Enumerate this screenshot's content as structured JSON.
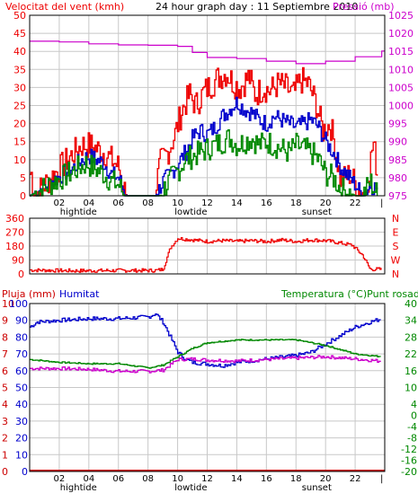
{
  "header": {
    "title": "24 hour graph day : 11 Septiembre 2010",
    "left_label": "Velocitat del vent (kmh)",
    "right_label": "Pressió (mb)"
  },
  "colors": {
    "wind_max": "#ee0000",
    "wind_avg": "#0000cc",
    "wind_min": "#008800",
    "pressure": "#cc00cc",
    "direction": "#ee0000",
    "humidity": "#0000cc",
    "temperature": "#008800",
    "dewpoint": "#cc00cc",
    "rain": "#cc0000",
    "grid": "#c8c8c8",
    "frame": "#000000"
  },
  "x_axis": {
    "ticks": [
      "02",
      "04",
      "06",
      "08",
      "10",
      "12",
      "14",
      "16",
      "18",
      "20",
      "22",
      "|"
    ],
    "markers": [
      {
        "label": "hightide",
        "hour": 3.3
      },
      {
        "label": "lowtide",
        "hour": 10.9
      },
      {
        "label": "sunset",
        "hour": 19.4
      }
    ]
  },
  "chart_data": [
    {
      "type": "line",
      "title": "24 hour graph day : 11 Septiembre 2010",
      "ylabel": "Velocitat del vent (kmh)",
      "ylabel_right": "Pressió (mb)",
      "ylim": [
        0,
        50
      ],
      "ylim_right": [
        975,
        1025
      ],
      "yticks": [
        "0",
        "5",
        "10",
        "15",
        "20",
        "25",
        "30",
        "35",
        "40",
        "45",
        "50"
      ],
      "yticks_right": [
        "975",
        "980",
        "985",
        "990",
        "995",
        "1000",
        "1005",
        "1010",
        "1015",
        "1020",
        "1025"
      ],
      "x_unit": "hour",
      "series": [
        {
          "key": "wind_max",
          "x": [
            0,
            0.1,
            0.3,
            3.0,
            3.5,
            4.0,
            4.5,
            5.0,
            6.0,
            6.5,
            8.4,
            8.8,
            9.3,
            9.8,
            10.3,
            10.8,
            11.2,
            11.8,
            12.3,
            12.8,
            13.3,
            13.8,
            14.2,
            14.8,
            15.2,
            15.8,
            16.2,
            16.8,
            17.3,
            17.8,
            18.3,
            18.8,
            19.3,
            19.8,
            20.3,
            20.6,
            21,
            21.6,
            22.2,
            22.7,
            23.2,
            23.5
          ],
          "values": [
            6,
            6,
            0,
            12,
            14,
            14,
            13,
            12,
            8,
            0,
            0,
            9,
            12,
            17,
            24,
            28,
            25,
            29,
            31,
            33,
            34,
            31,
            30,
            33,
            28,
            30,
            29,
            31,
            30,
            28,
            32,
            31,
            26,
            18,
            20,
            14,
            4,
            6,
            2,
            0,
            15,
            6
          ]
        },
        {
          "key": "wind_avg",
          "x": [
            0,
            3.0,
            3.5,
            4.0,
            4.5,
            5.0,
            5.5,
            6.0,
            6.5,
            8.5,
            9.0,
            9.5,
            10.0,
            10.5,
            11.0,
            11.5,
            12.0,
            12.5,
            13.0,
            13.5,
            14.0,
            14.5,
            15.0,
            15.5,
            16.0,
            16.5,
            17.0,
            17.5,
            18.0,
            18.5,
            19.0,
            19.5,
            20.0,
            20.5,
            21.0,
            22.0,
            22.5,
            23.0,
            23.5
          ],
          "values": [
            0,
            8,
            10,
            11,
            10,
            9,
            6,
            5,
            0,
            0,
            4,
            6,
            9,
            12,
            16,
            18,
            17,
            19,
            22,
            24,
            26,
            24,
            23,
            21,
            20,
            22,
            21,
            20,
            19,
            20,
            21,
            19,
            15,
            12,
            8,
            3,
            0,
            3,
            2
          ]
        },
        {
          "key": "wind_min",
          "x": [
            0,
            3.0,
            3.4,
            3.8,
            4.2,
            4.6,
            5.0,
            5.5,
            6.0,
            6.4,
            8.8,
            9.2,
            9.6,
            10.0,
            10.5,
            11.0,
            11.5,
            12.0,
            12.5,
            13.0,
            13.5,
            14.0,
            14.5,
            15.0,
            15.5,
            16.0,
            16.5,
            17.0,
            17.5,
            18.0,
            18.5,
            19.0,
            19.5,
            20.0,
            20.5,
            21.0,
            22.0,
            22.5,
            23.0,
            23.5
          ],
          "values": [
            0,
            7,
            8,
            9,
            8,
            7,
            6,
            4,
            3,
            0,
            0,
            3,
            5,
            7,
            10,
            11,
            12,
            13,
            14,
            15,
            16,
            14,
            15,
            16,
            14,
            15,
            14,
            13,
            12,
            14,
            13,
            12,
            10,
            6,
            5,
            2,
            0,
            0,
            4,
            0
          ]
        },
        {
          "key": "pressure",
          "x": [
            0,
            2,
            4,
            6,
            8,
            10,
            11,
            12,
            14,
            16,
            18,
            20,
            22,
            23.8
          ],
          "values": [
            1017.8,
            1017.6,
            1017.1,
            1016.8,
            1016.7,
            1016.4,
            1014.7,
            1013.3,
            1013.0,
            1012.3,
            1011.6,
            1012.3,
            1013.5,
            1015.1
          ]
        }
      ]
    },
    {
      "type": "line",
      "ylabel": "",
      "ylim": [
        0,
        360
      ],
      "yticks": [
        "0",
        "90",
        "180",
        "270",
        "360"
      ],
      "yticks_right": [
        "N",
        "W",
        "S",
        "E",
        "N"
      ],
      "series": [
        {
          "key": "direction",
          "x": [
            0,
            3,
            6,
            8.5,
            9.0,
            9.5,
            10,
            11,
            12,
            13,
            14,
            15,
            16,
            17,
            18,
            19,
            20,
            21,
            21.8,
            22.5,
            23,
            23.8
          ],
          "values": [
            25,
            20,
            22,
            22,
            30,
            170,
            230,
            220,
            210,
            215,
            210,
            215,
            210,
            220,
            210,
            220,
            215,
            200,
            185,
            120,
            30,
            30
          ]
        }
      ]
    },
    {
      "type": "line",
      "title": "Temperatura (°C)Punt rosada",
      "ylabel": "Pluja (mm)",
      "ylabel2": "Humitat",
      "ylim": [
        0,
        100
      ],
      "ylim_right": [
        -20,
        40
      ],
      "yticks_rain": [
        "0",
        "1",
        "2",
        "3",
        "4",
        "5",
        "6",
        "7",
        "8",
        "9",
        "10"
      ],
      "yticks": [
        "0",
        "10",
        "20",
        "30",
        "40",
        "50",
        "60",
        "70",
        "80",
        "90",
        "100"
      ],
      "yticks_right": [
        "-20",
        "-16",
        "-12",
        "-8",
        "-4",
        "0",
        "4",
        "10",
        "16",
        "22",
        "28",
        "34",
        "40"
      ],
      "series": [
        {
          "key": "humidity",
          "x": [
            0,
            0.5,
            2,
            4,
            6,
            8,
            8.5,
            9.0,
            9.5,
            10,
            10.5,
            11,
            12,
            13,
            14,
            15,
            16,
            17,
            18,
            19,
            20,
            21,
            22,
            23,
            23.8
          ],
          "values": [
            86,
            89,
            90,
            91,
            91,
            92,
            94,
            89,
            80,
            71,
            67,
            65,
            64,
            63,
            65,
            66,
            67,
            68,
            69,
            71,
            76,
            81,
            86,
            89,
            91
          ]
        },
        {
          "key": "temperature",
          "x": [
            0,
            2,
            4,
            6,
            8,
            9,
            10,
            11,
            12,
            14,
            16,
            18,
            19,
            20,
            21,
            22,
            23.8
          ],
          "values": [
            20,
            19,
            18.5,
            18.5,
            17,
            18,
            21,
            24,
            26,
            27,
            27,
            27,
            26,
            25,
            23.5,
            22,
            21
          ]
        },
        {
          "key": "dewpoint",
          "x": [
            0,
            2,
            4,
            6,
            8,
            9,
            10,
            11,
            12,
            14,
            16,
            18,
            20,
            22,
            23.8
          ],
          "values": [
            16.8,
            16.8,
            16.5,
            15.8,
            15.8,
            16.2,
            20,
            20.2,
            19.8,
            19.5,
            20,
            20.5,
            21,
            20.2,
            19.4
          ]
        },
        {
          "key": "rain",
          "x": [
            0,
            23.9
          ],
          "values": [
            0,
            0
          ]
        }
      ]
    }
  ]
}
